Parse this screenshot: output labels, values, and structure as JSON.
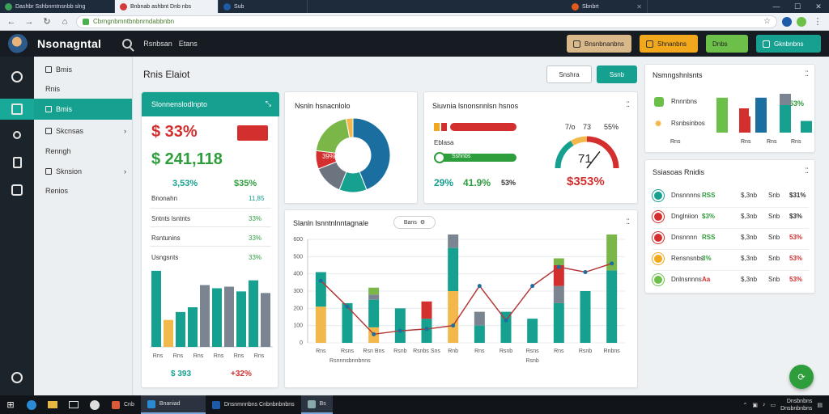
{
  "browser": {
    "tabs": [
      {
        "label": "Dashbr Sshbnrntnsnbb slng",
        "color": "#3aa05b"
      },
      {
        "label": "Bnbnab ashbnt Dnb nbs",
        "color": "#d23c3c"
      },
      {
        "label": "Sub",
        "color": "#1d5aa8"
      },
      {
        "label": "Sbnbrt",
        "color": "#e05a1e"
      }
    ],
    "url": "Cbrngnbmntbnbnrndabbnbn",
    "window_controls": [
      "—",
      "☐",
      "✕"
    ]
  },
  "app": {
    "brand": "Nsonagntal",
    "header_links": [
      "Rsnbsan",
      "Etans"
    ],
    "header_buttons": [
      {
        "label": "Bnsnbnanbns",
        "color": "#d9b98a"
      },
      {
        "label": "Shnanbns",
        "color": "#f2a81c"
      },
      {
        "label": "Dnbs",
        "color": "#6cc04a"
      },
      {
        "label": "Gknbnbns",
        "color": "#16a08f"
      }
    ]
  },
  "sidebar": {
    "items": [
      {
        "label": "Bmis",
        "icon": "square-icon",
        "chevron": false
      },
      {
        "label": "Rnis",
        "icon": "",
        "chevron": false
      },
      {
        "label": "Bmis",
        "icon": "square-icon",
        "chevron": false
      },
      {
        "label": "Skcnsas",
        "icon": "square-icon",
        "chevron": true
      },
      {
        "label": "Renngh",
        "icon": "",
        "chevron": false
      },
      {
        "label": "Sknsion",
        "icon": "square-icon",
        "chevron": true
      },
      {
        "label": "Renios",
        "icon": "",
        "chevron": false
      }
    ]
  },
  "main": {
    "title": "Rnis Elaiot",
    "btn_outline": "Snshra",
    "btn_primary": "Ssnb"
  },
  "summary_card": {
    "title": "Slonnenslodlnpto",
    "big_value_1": "$ 33%",
    "badge": "",
    "big_value_2": "$ 241,118",
    "stat_a": "3,53%",
    "stat_b": "$35%",
    "row0_label": "Bnonahn",
    "row0_value": "11,85",
    "rows": [
      {
        "label": "Sntnts lsntnts",
        "value": "33%"
      },
      {
        "label": "Rsntunins",
        "value": "33%"
      },
      {
        "label": "Usngsnts",
        "value": "33%"
      }
    ],
    "footer_a": "$ 393",
    "footer_b": "+32%",
    "mini_bars": [
      {
        "value": 96,
        "color": "#16a08f"
      },
      {
        "value": 34,
        "color": "#f2b84b"
      },
      {
        "value": 44,
        "color": "#16a08f"
      },
      {
        "value": 50,
        "color": "#16a08f"
      },
      {
        "value": 78,
        "color": "#7a8591"
      },
      {
        "value": 74,
        "color": "#16a08f"
      },
      {
        "value": 76,
        "color": "#7a8591"
      },
      {
        "value": 70,
        "color": "#16a08f"
      },
      {
        "value": 84,
        "color": "#16a08f"
      },
      {
        "value": 68,
        "color": "#7a8591"
      }
    ],
    "mini_labels": [
      "Rns",
      "Rns",
      "Rns",
      "Rns",
      "Rns",
      "Rns"
    ]
  },
  "donut_card": {
    "title": "Nsnln hsnacnlolo",
    "center_label": "39%",
    "slices": [
      {
        "value": 44,
        "color": "#1b6fa0"
      },
      {
        "value": 12,
        "color": "#16a08f"
      },
      {
        "value": 13,
        "color": "#6c7480"
      },
      {
        "value": 8,
        "color": "#d32f2f"
      },
      {
        "value": 20,
        "color": "#7ab648"
      },
      {
        "value": 3,
        "color": "#f2b84b"
      }
    ]
  },
  "gauge_card": {
    "title": "Siuvnia lsnonsnnlsn hsnos",
    "bar1_label": "Eblasa",
    "bar2_label": "Sysonsnbos",
    "bar2_tag": "Sshnbs",
    "gauge_ticks": [
      "7/o",
      "73",
      "55%"
    ],
    "gauge_value": "71",
    "gauge_level": 0.71,
    "stats": [
      "29%",
      "41.9%",
      "53%"
    ],
    "big": "$353%"
  },
  "main_chart_card": {
    "title": "Slanln lsnntnlnntagnale",
    "pill": "Bans"
  },
  "chart_data": {
    "type": "bar",
    "title": "Slanln lsnntnlnntagnale",
    "ylim": [
      0,
      600
    ],
    "yticks": [
      "0",
      "100",
      "200",
      "300",
      "400",
      "500",
      "600"
    ],
    "categories": [
      "Rns",
      "Rsns",
      "Rsn Bns",
      "Rsnb",
      "Rsnbs Sns",
      "Rnb",
      "Rns",
      "Rsnb",
      "Rsns",
      "Rns",
      "Rsnb",
      "Rnbns"
    ],
    "x_sublabels": [
      "Rsnnnsbnnbnns",
      "",
      "",
      "",
      "",
      "",
      "",
      "",
      "Rsnb",
      "",
      "",
      ""
    ],
    "series": [
      {
        "name": "",
        "color": "#f2b84b",
        "values": [
          210,
          0,
          90,
          0,
          0,
          300,
          0,
          0,
          0,
          0,
          0,
          0
        ]
      },
      {
        "name": "",
        "color": "#16a08f",
        "values": [
          200,
          230,
          160,
          200,
          140,
          250,
          100,
          180,
          140,
          230,
          300,
          420
        ]
      },
      {
        "name": "",
        "color": "#7a8591",
        "values": [
          0,
          0,
          30,
          0,
          0,
          320,
          80,
          0,
          0,
          100,
          0,
          0
        ]
      },
      {
        "name": "",
        "color": "#d32f2f",
        "values": [
          0,
          0,
          0,
          0,
          100,
          0,
          0,
          0,
          0,
          120,
          0,
          0
        ]
      },
      {
        "name": "",
        "color": "#7ab648",
        "values": [
          0,
          0,
          40,
          0,
          0,
          0,
          0,
          0,
          0,
          40,
          0,
          250
        ]
      }
    ],
    "line": {
      "color": "#b43a3a",
      "values": [
        360,
        210,
        50,
        70,
        80,
        100,
        330,
        130,
        330,
        440,
        410,
        460
      ],
      "marker_color": "#1b6fa0"
    },
    "grid": true,
    "legend": "none"
  },
  "right_card1": {
    "title": "Nsmngshnlsnts",
    "legend": [
      {
        "label": "Rnnnbns",
        "icon_color": "#6cc04a"
      },
      {
        "label": "Rsnbsinbos",
        "icon_color": "#f2b84b"
      }
    ],
    "badge_value": "53%",
    "bars": [
      {
        "value": 90,
        "color": "#6cc04a"
      },
      {
        "value": 42,
        "color": "#d32f2f"
      },
      {
        "value": 90,
        "color": "#1b6fa0"
      },
      {
        "value": 90,
        "color": "#16a08f"
      },
      {
        "value": 30,
        "color": "#16a08f"
      }
    ],
    "labels": [
      "Rns",
      "Rns",
      "Rns",
      "Rns"
    ]
  },
  "right_card2": {
    "title": "Ssiasoas Rnidis",
    "rows": [
      {
        "icon_color": "#16a08f",
        "label": "Dnsnnnns",
        "tag": "RSS",
        "tag_color": "#2e9d3c",
        "v1": "$,3nb",
        "v2": "Snb",
        "v3": "$31%",
        "v3_color": "#333333"
      },
      {
        "icon_color": "#d32f2f",
        "label": "Dnglniion",
        "tag": "$3%",
        "tag_color": "#2e9d3c",
        "v1": "$,3nb",
        "v2": "Snb",
        "v3": "$3%",
        "v3_color": "#333333"
      },
      {
        "icon_color": "#d32f2f",
        "label": "Dnsnnnn",
        "tag": "RSS",
        "tag_color": "#2e9d3c",
        "v1": "$,3nb",
        "v2": "Snb",
        "v3": "53%",
        "v3_color": "#d32f2f"
      },
      {
        "icon_color": "#f2a81c",
        "label": "Rensnsnbs",
        "tag": "3%",
        "tag_color": "#2e9d3c",
        "v1": "$,3nb",
        "v2": "Snb",
        "v3": "53%",
        "v3_color": "#d32f2f"
      },
      {
        "icon_color": "#6cc04a",
        "label": "Dnlnsnnns",
        "tag": "Aa",
        "tag_color": "#d32f2f",
        "v1": "$,3nb",
        "v2": "Snb",
        "v3": "53%",
        "v3_color": "#d32f2f"
      }
    ]
  },
  "taskbar": {
    "apps": [
      "Cnb",
      "Bnaniad",
      "Dnsnmnnbns Cnbnbnbnbns",
      "Bs"
    ],
    "tray_time": "Dnsbnbns",
    "tray_date": "Dnsbnbnbns"
  }
}
